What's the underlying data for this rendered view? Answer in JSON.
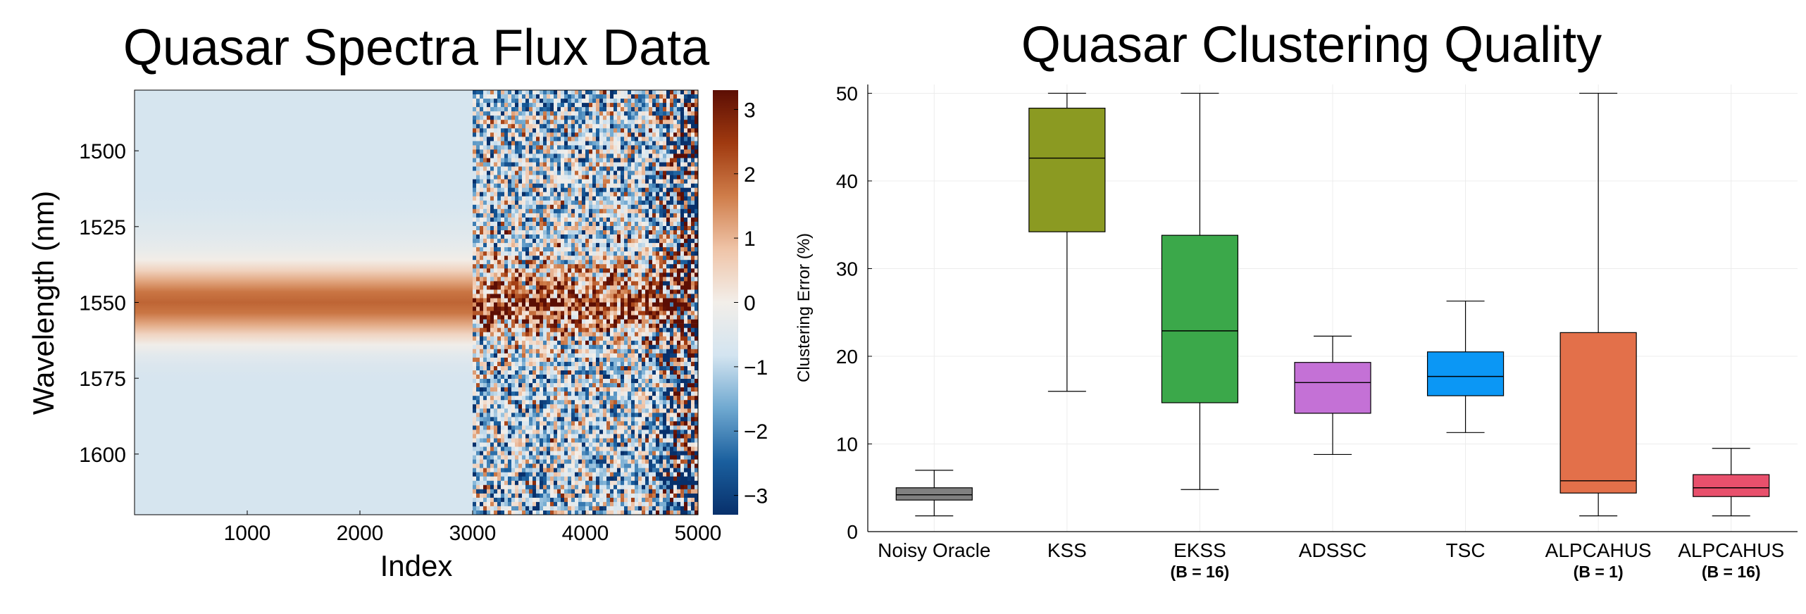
{
  "chart_data": [
    {
      "type": "heatmap",
      "title": "Quasar Spectra Flux Data",
      "xlabel": "Index",
      "ylabel": "Wavelength (nm)",
      "xlim": [
        0,
        5000
      ],
      "ylim": [
        1480,
        1620
      ],
      "xticks": [
        "1000",
        "2000",
        "3000",
        "4000",
        "5000"
      ],
      "yticks": [
        "1500",
        "1525",
        "1550",
        "1575",
        "1600"
      ],
      "colorbar": {
        "min": -3.3,
        "max": 3.3,
        "ticks": [
          "3",
          "2",
          "1",
          "0",
          "−1",
          "−2",
          "−3"
        ],
        "colormap": "diverging blue-white-red",
        "colors": [
          "#08306b",
          "#1a5f9e",
          "#6fa8d0",
          "#d3e4f0",
          "#f2eee9",
          "#efc4a8",
          "#cf7d4a",
          "#a03a10",
          "#5c0e04"
        ]
      },
      "noise_regime_change_index": 3000,
      "emission_line_center_nm": 1550
    },
    {
      "type": "box",
      "title": "Quasar Clustering Quality",
      "xlabel": "",
      "ylabel": "Clustering Error (%)",
      "ylim": [
        0,
        51
      ],
      "yticks": [
        "0",
        "10",
        "20",
        "30",
        "40",
        "50"
      ],
      "grid": true,
      "categories": [
        {
          "label": "Noisy Oracle",
          "sublabel": "",
          "color": "#808080",
          "whisker_low": 1.8,
          "q1": 3.6,
          "median": 4.2,
          "q3": 5.0,
          "whisker_high": 7.0
        },
        {
          "label": "KSS",
          "sublabel": "",
          "color": "#8b9a22",
          "whisker_low": 16.0,
          "q1": 34.2,
          "median": 42.6,
          "q3": 48.3,
          "whisker_high": 50.0
        },
        {
          "label": "EKSS",
          "sublabel": "(B = 16)",
          "color": "#3ba84a",
          "whisker_low": 4.8,
          "q1": 14.7,
          "median": 22.9,
          "q3": 33.8,
          "whisker_high": 50.0
        },
        {
          "label": "ADSSC",
          "sublabel": "",
          "color": "#c471d6",
          "whisker_low": 8.8,
          "q1": 13.5,
          "median": 17.0,
          "q3": 19.3,
          "whisker_high": 22.3
        },
        {
          "label": "TSC",
          "sublabel": "",
          "color": "#0b97f5",
          "whisker_low": 11.3,
          "q1": 15.5,
          "median": 17.7,
          "q3": 20.5,
          "whisker_high": 26.3
        },
        {
          "label": "ALPCAHUS",
          "sublabel": "(B = 1)",
          "color": "#e3704a",
          "whisker_low": 1.8,
          "q1": 4.4,
          "median": 5.8,
          "q3": 22.7,
          "whisker_high": 50.0
        },
        {
          "label": "ALPCAHUS",
          "sublabel": "(B = 16)",
          "color": "#e8506c",
          "whisker_low": 1.8,
          "q1": 4.0,
          "median": 5.0,
          "q3": 6.5,
          "whisker_high": 9.5
        }
      ]
    }
  ]
}
